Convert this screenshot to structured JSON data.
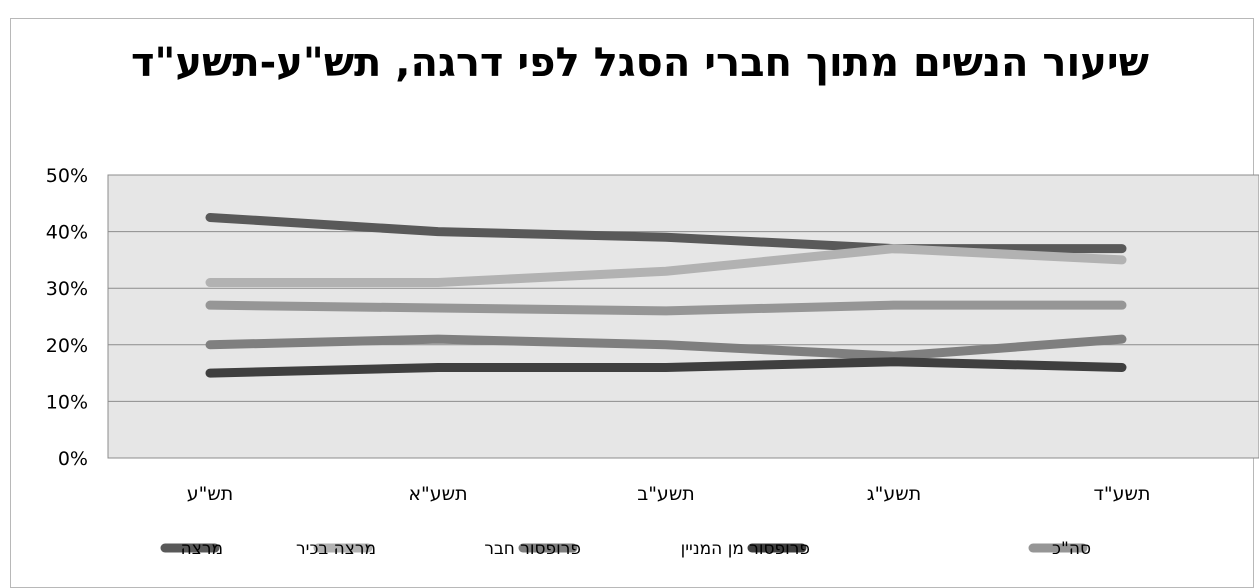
{
  "chart_data": {
    "type": "line",
    "title": "שיעור הנשים מתוך חברי הסגל לפי דרגה, תש\"ע-תשע\"ד",
    "categories": [
      "תש\"ע",
      "תשע\"א",
      "תשע\"ב",
      "תשע\"ג",
      "תשע\"ד"
    ],
    "ylim": [
      0,
      0.5
    ],
    "y_ticks": [
      "0%",
      "10%",
      "20%",
      "30%",
      "40%",
      "50%"
    ],
    "y_tick_values": [
      0,
      0.1,
      0.2,
      0.3,
      0.4,
      0.5
    ],
    "grid": true,
    "legend_position": "bottom",
    "series": [
      {
        "name": "מרצה",
        "color": "#595959",
        "values": [
          0.425,
          0.4,
          0.39,
          0.37,
          0.37
        ]
      },
      {
        "name": "מרצה בכיר",
        "color": "#b2b2b2",
        "values": [
          0.31,
          0.31,
          0.33,
          0.37,
          0.35
        ]
      },
      {
        "name": "פרופסור חבר",
        "color": "#7f7f7f",
        "values": [
          0.2,
          0.21,
          0.2,
          0.18,
          0.21
        ]
      },
      {
        "name": "פרופסור מן המניין",
        "color": "#3f3f3f",
        "values": [
          0.15,
          0.16,
          0.16,
          0.17,
          0.16
        ]
      },
      {
        "name": "סה\"כ",
        "color": "#969696",
        "values": [
          0.27,
          0.265,
          0.26,
          0.27,
          0.27
        ]
      }
    ]
  }
}
